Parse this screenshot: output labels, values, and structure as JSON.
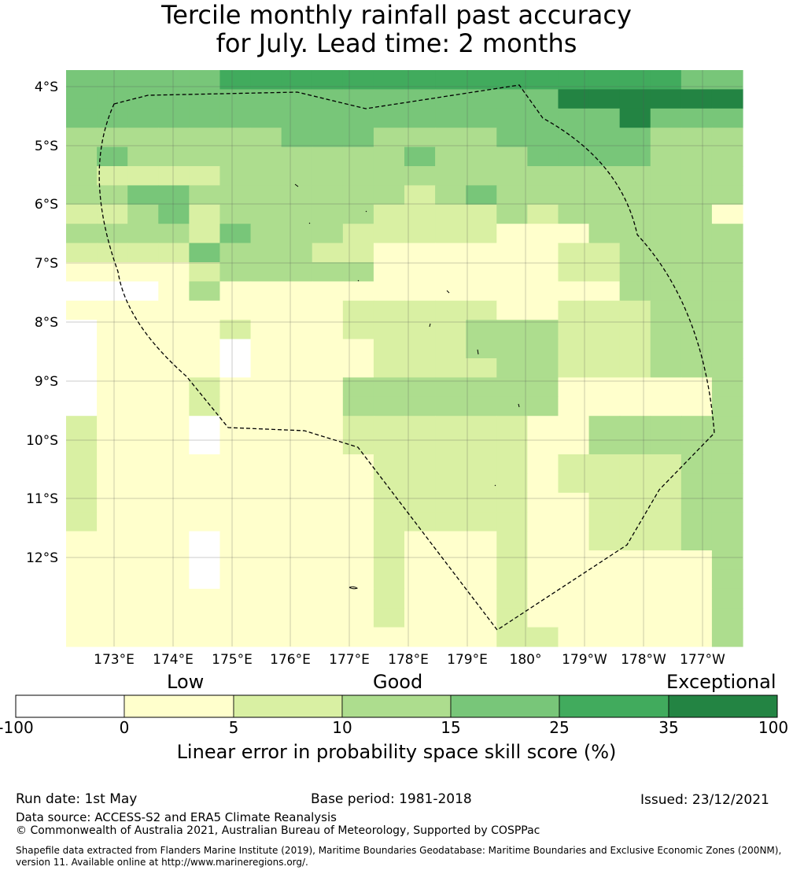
{
  "title": {
    "line1": "Tercile monthly rainfall past accuracy",
    "line2": "for July. Lead time: 2 months"
  },
  "map": {
    "lat_labels": [
      "4°S",
      "5°S",
      "6°S",
      "7°S",
      "8°S",
      "9°S",
      "10°S",
      "11°S",
      "12°S"
    ],
    "lon_labels": [
      "173°E",
      "174°E",
      "175°E",
      "176°E",
      "177°E",
      "178°E",
      "179°E",
      "180°",
      "179°W",
      "178°W",
      "177°W"
    ],
    "grid_rows": [
      "4444455555555555555544",
      "4444444444444444666666",
      "4444444444444444446444",
      "3333333444333344444333",
      "3433333333343334444333",
      "3222233333333333333333",
      "3344333333323433333333",
      "2234233333222232333331",
      "3333243332222211133333",
      "2222433322111111223333",
      "1111233333111111223333",
      "0001311111111111113333",
      "1111111112222211222333",
      "0111121112222333222333",
      "0111101111222333222333",
      "0111101111222233222333",
      "0111211113333333111113",
      "0111211113333333111113",
      "2111011112222221133333",
      "2111011112222221133333",
      "2111111111222221222233",
      "2111111111222221222233",
      "2111111111222221122233",
      "2111111111222221122233",
      "1111011111211121122233",
      "1111011111211121111113",
      "1111011111211121111113",
      "1111111111211121111113",
      "1111111111211121111113",
      "1111111111111122111113"
    ],
    "cell_colors": {
      "0": "#ffffff",
      "1": "#ffffcc",
      "2": "#d9f0a3",
      "3": "#addd8e",
      "4": "#78c679",
      "5": "#41ab5d",
      "6": "#238443"
    }
  },
  "colorbar": {
    "categories": [
      "Low",
      "Good",
      "Exceptional"
    ],
    "ticks": [
      "-100",
      "0",
      "5",
      "10",
      "15",
      "25",
      "35",
      "100"
    ],
    "colors": [
      "#ffffff",
      "#ffffcc",
      "#d9f0a3",
      "#addd8e",
      "#78c679",
      "#41ab5d",
      "#238443"
    ],
    "label": "Linear error in probability space skill score (%)"
  },
  "footer": {
    "run_date": "Run date: 1st May",
    "base_period": "Base period: 1981-2018",
    "issued": "Issued: 23/12/2021",
    "data_source": "Data source: ACCESS-S2 and ERA5 Climate Reanalysis",
    "copyright": "© Commonwealth of Australia 2021, Australian Bureau of Meteorology, Supported by COSPPac",
    "shapefile": "Shapefile data extracted from Flanders Marine Institute (2019), Maritime Boundaries Geodatabase: Maritime Boundaries and Exclusive Economic Zones (200NM), version 11. Available online at http://www.marineregions.org/."
  }
}
